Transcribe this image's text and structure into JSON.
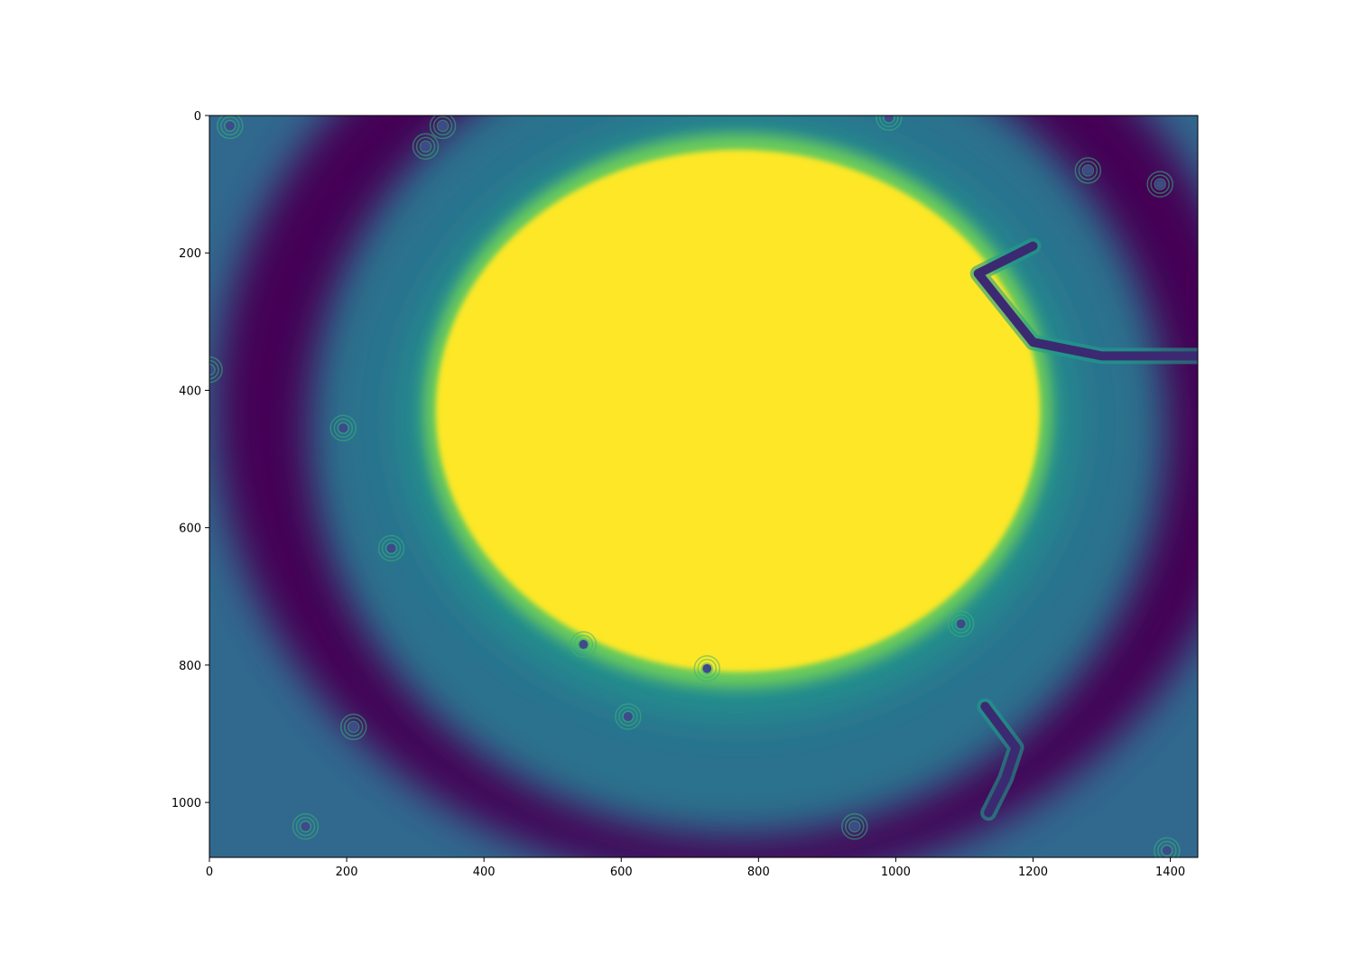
{
  "chart_data": {
    "type": "heatmap",
    "title": "",
    "xlabel": "",
    "ylabel": "",
    "xlim": [
      0,
      1440
    ],
    "ylim": [
      1080,
      0
    ],
    "x_ticks": [
      0,
      200,
      400,
      600,
      800,
      1000,
      1200,
      1400
    ],
    "y_ticks": [
      0,
      200,
      400,
      600,
      800,
      1000
    ],
    "colormap": "viridis",
    "colors": {
      "low": "#440154",
      "mid": "#21908d",
      "high": "#fde725"
    },
    "grid": false,
    "saturated_region": {
      "center": [
        770,
        430
      ],
      "radius_x": 440,
      "radius_y": 380
    },
    "dark_ring": {
      "center": [
        770,
        430
      ],
      "radius_x": 760,
      "radius_y": 690
    },
    "particles": [
      {
        "x": 30,
        "y": 15
      },
      {
        "x": 315,
        "y": 45
      },
      {
        "x": 340,
        "y": 15
      },
      {
        "x": 990,
        "y": 3
      },
      {
        "x": 1385,
        "y": 100
      },
      {
        "x": 1280,
        "y": 80
      },
      {
        "x": 0,
        "y": 370
      },
      {
        "x": 265,
        "y": 630
      },
      {
        "x": 195,
        "y": 455
      },
      {
        "x": 545,
        "y": 770
      },
      {
        "x": 725,
        "y": 805
      },
      {
        "x": 610,
        "y": 875
      },
      {
        "x": 210,
        "y": 890
      },
      {
        "x": 140,
        "y": 1035
      },
      {
        "x": 940,
        "y": 1035
      },
      {
        "x": 1095,
        "y": 740
      },
      {
        "x": 1395,
        "y": 1070
      }
    ],
    "filaments": [
      {
        "points": [
          [
            1200,
            190
          ],
          [
            1120,
            230
          ],
          [
            1200,
            330
          ],
          [
            1300,
            350
          ],
          [
            1440,
            350
          ]
        ]
      },
      {
        "points": [
          [
            1130,
            860
          ],
          [
            1175,
            920
          ],
          [
            1160,
            965
          ],
          [
            1135,
            1015
          ]
        ]
      }
    ]
  }
}
